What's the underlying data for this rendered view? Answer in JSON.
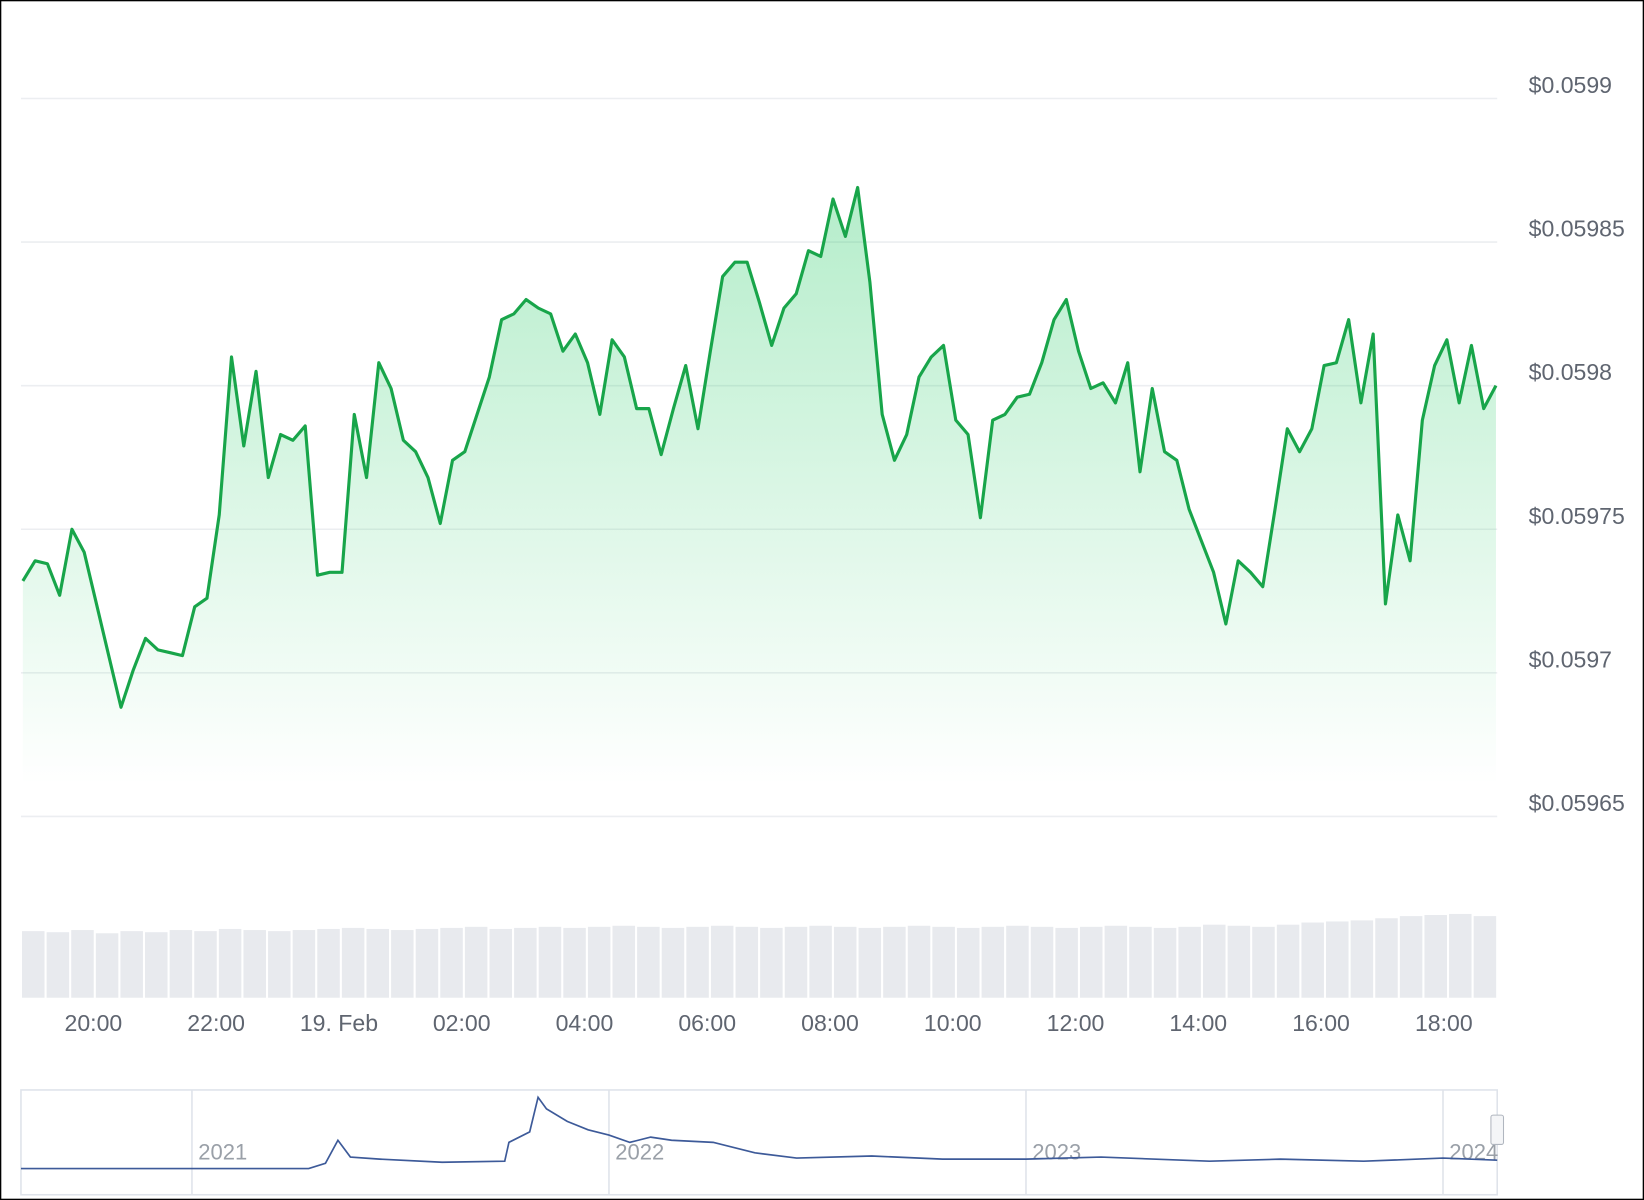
{
  "chart_data": [
    {
      "type": "line",
      "color": "#18a54a",
      "grid": true,
      "x": [
        18.85,
        19.05,
        19.25,
        19.45,
        19.65,
        19.85,
        20.05,
        20.25,
        20.45,
        20.65,
        20.85,
        21.05,
        21.25,
        21.45,
        21.65,
        21.85,
        22.05,
        22.25,
        22.45,
        22.65,
        22.85,
        23.05,
        23.25,
        23.45,
        23.65,
        23.85,
        24.05,
        24.25,
        24.45,
        24.65,
        24.85,
        25.05,
        25.25,
        25.45,
        25.65,
        25.85,
        26.05,
        26.25,
        26.45,
        26.65,
        26.85,
        27.05,
        27.25,
        27.45,
        27.65,
        27.85,
        28.05,
        28.25,
        28.45,
        28.65,
        28.85,
        29.05,
        29.25,
        29.45,
        29.65,
        29.85,
        30.05,
        30.25,
        30.45,
        30.65,
        30.85,
        31.05,
        31.25,
        31.45,
        31.65,
        31.85,
        32.05,
        32.25,
        32.45,
        32.65,
        32.85,
        33.05,
        33.25,
        33.45,
        33.65,
        33.85,
        34.05,
        34.25,
        34.45,
        34.65,
        34.85,
        35.05,
        35.25,
        35.45,
        35.65,
        35.85,
        36.05,
        36.25,
        36.45,
        36.65,
        36.85,
        37.05,
        37.25,
        37.45,
        37.65,
        37.85,
        38.05,
        38.25,
        38.45,
        38.65,
        38.85,
        39.05,
        39.25,
        39.45,
        39.65,
        39.85,
        40.05,
        40.25,
        40.45,
        40.65,
        40.85,
        41.05,
        41.25,
        41.45,
        41.65,
        41.85,
        42.05,
        42.25,
        42.45,
        42.65,
        42.85
      ],
      "values": [
        0.059732,
        0.059739,
        0.059738,
        0.059727,
        0.05975,
        0.059742,
        0.059724,
        0.059706,
        0.059688,
        0.059701,
        0.059712,
        0.059708,
        0.059707,
        0.059706,
        0.059723,
        0.059726,
        0.059755,
        0.05981,
        0.059779,
        0.059805,
        0.059768,
        0.059783,
        0.059781,
        0.059786,
        0.059734,
        0.059735,
        0.059735,
        0.05979,
        0.059768,
        0.059808,
        0.059799,
        0.059781,
        0.059777,
        0.059768,
        0.059752,
        0.059774,
        0.059777,
        0.05979,
        0.059803,
        0.059823,
        0.059825,
        0.05983,
        0.059827,
        0.059825,
        0.059812,
        0.059818,
        0.059808,
        0.05979,
        0.059816,
        0.05981,
        0.059792,
        0.059792,
        0.059776,
        0.059792,
        0.059807,
        0.059785,
        0.059812,
        0.059838,
        0.059843,
        0.059843,
        0.059829,
        0.059814,
        0.059827,
        0.059832,
        0.059847,
        0.059845,
        0.059865,
        0.059852,
        0.059869,
        0.059836,
        0.05979,
        0.059774,
        0.059783,
        0.059803,
        0.05981,
        0.059814,
        0.059788,
        0.059783,
        0.059754,
        0.059788,
        0.05979,
        0.059796,
        0.059797,
        0.059808,
        0.059823,
        0.05983,
        0.059812,
        0.059799,
        0.059801,
        0.059794,
        0.059808,
        0.05977,
        0.059799,
        0.059777,
        0.059774,
        0.059757,
        0.059746,
        0.059735,
        0.059717,
        0.059739,
        0.059735,
        0.05973,
        0.059757,
        0.059785,
        0.059777,
        0.059785,
        0.059807,
        0.059808,
        0.059823,
        0.059794,
        0.059818,
        0.059724,
        0.059755,
        0.059739,
        0.059788,
        0.059807,
        0.059816,
        0.059794,
        0.059814,
        0.059792,
        0.0598
      ],
      "xlim": [
        18.82,
        42.87
      ],
      "xticks": [
        {
          "value": 20,
          "label": "20:00"
        },
        {
          "value": 22,
          "label": "22:00"
        },
        {
          "value": 24,
          "label": "19. Feb"
        },
        {
          "value": 26,
          "label": "02:00"
        },
        {
          "value": 28,
          "label": "04:00"
        },
        {
          "value": 30,
          "label": "06:00"
        },
        {
          "value": 32,
          "label": "08:00"
        },
        {
          "value": 34,
          "label": "10:00"
        },
        {
          "value": 36,
          "label": "12:00"
        },
        {
          "value": 38,
          "label": "14:00"
        },
        {
          "value": 40,
          "label": "16:00"
        },
        {
          "value": 42,
          "label": "18:00"
        }
      ],
      "ylim": [
        0.05965,
        0.0599
      ],
      "yticks": [
        {
          "value": 0.0599,
          "label": "$0.0599"
        },
        {
          "value": 0.05985,
          "label": "$0.05985"
        },
        {
          "value": 0.0598,
          "label": "$0.0598"
        },
        {
          "value": 0.05975,
          "label": "$0.05975"
        },
        {
          "value": 0.0597,
          "label": "$0.0597"
        },
        {
          "value": 0.05965,
          "label": "$0.05965"
        }
      ]
    },
    {
      "type": "bar",
      "color": "#e8eaee",
      "ylim": [
        0,
        80
      ],
      "values": [
        62,
        61,
        63,
        60,
        62,
        61,
        63,
        62,
        64,
        63,
        62,
        63,
        64,
        65,
        64,
        63,
        64,
        65,
        66,
        64,
        65,
        66,
        65,
        66,
        67,
        66,
        65,
        66,
        67,
        66,
        65,
        66,
        67,
        66,
        65,
        66,
        67,
        66,
        65,
        66,
        67,
        66,
        65,
        66,
        67,
        66,
        65,
        66,
        68,
        67,
        66,
        68,
        70,
        71,
        72,
        74,
        76,
        77,
        78,
        76
      ]
    },
    {
      "type": "navigator",
      "color": "#3d5a99",
      "ylim": [
        0,
        70
      ],
      "xlim": [
        2020.59,
        2024.13
      ],
      "xticks": [
        2021,
        2022,
        2023,
        2024
      ],
      "x": [
        2020.59,
        2021.0,
        2021.28,
        2021.32,
        2021.35,
        2021.38,
        2021.45,
        2021.6,
        2021.75,
        2021.76,
        2021.81,
        2021.83,
        2021.85,
        2021.9,
        2021.95,
        2022.0,
        2022.05,
        2022.1,
        2022.15,
        2022.25,
        2022.35,
        2022.45,
        2022.63,
        2022.8,
        2023.0,
        2023.18,
        2023.44,
        2023.61,
        2023.81,
        2024.0,
        2024.13
      ],
      "values": [
        1,
        1,
        1,
        6,
        28,
        12,
        10,
        7,
        8,
        26,
        36,
        69,
        58,
        46,
        38,
        33,
        26,
        31,
        28,
        26,
        16,
        11,
        13,
        10,
        10,
        12,
        8,
        10,
        8,
        11,
        9
      ]
    }
  ]
}
